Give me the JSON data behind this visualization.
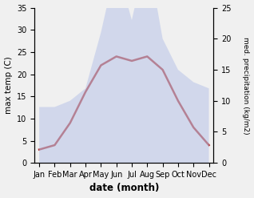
{
  "months": [
    "Jan",
    "Feb",
    "Mar",
    "Apr",
    "May",
    "Jun",
    "Jul",
    "Aug",
    "Sep",
    "Oct",
    "Nov",
    "Dec"
  ],
  "x": [
    0,
    1,
    2,
    3,
    4,
    5,
    6,
    7,
    8,
    9,
    10,
    11
  ],
  "temperature": [
    3,
    4,
    9,
    16,
    22,
    24,
    23,
    24,
    21,
    14,
    8,
    4
  ],
  "precipitation": [
    9,
    9,
    10,
    12,
    21,
    32,
    23,
    34,
    20,
    15,
    13,
    12
  ],
  "temp_color": "#b03030",
  "precip_fill_color": "#b8c4e8",
  "temp_ylim": [
    0,
    35
  ],
  "precip_ylim": [
    0,
    25
  ],
  "temp_yticks": [
    0,
    5,
    10,
    15,
    20,
    25,
    30,
    35
  ],
  "precip_yticks": [
    0,
    5,
    10,
    15,
    20,
    25
  ],
  "xlabel": "date (month)",
  "ylabel_left": "max temp (C)",
  "ylabel_right": "med. precipitation (kg/m2)",
  "line_width": 1.8,
  "fill_alpha": 0.55,
  "bg_color": "#f0f0f0"
}
